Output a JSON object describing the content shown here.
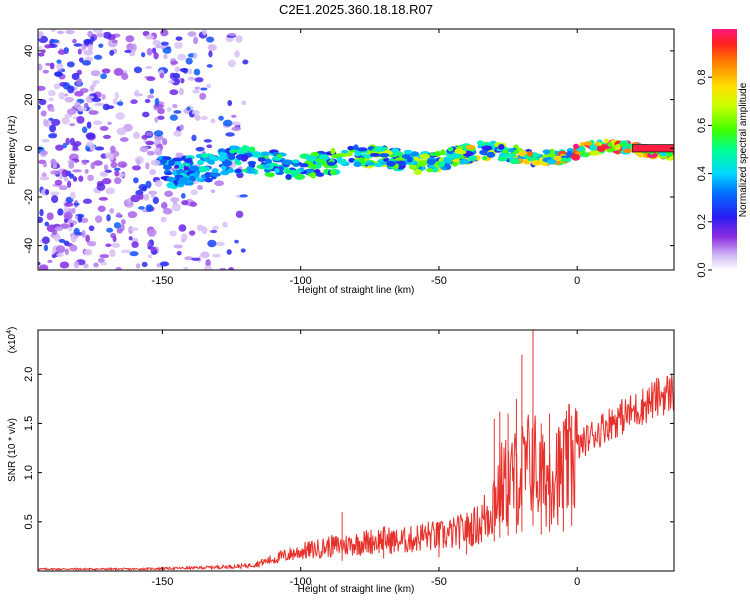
{
  "figure_title": "C2E1.2025.360.18.18.R07",
  "chart_data": [
    {
      "type": "heatmap",
      "title": "C2E1.2025.360.18.18.R07",
      "xlabel": "Height of straight line (km)",
      "ylabel": "Frequency (Hz)",
      "xlim": [
        -195,
        35
      ],
      "ylim": [
        -50,
        49
      ],
      "xticks": [
        -150,
        -100,
        -50,
        0
      ],
      "yticks": [
        -40,
        -20,
        0,
        20,
        40
      ],
      "colormap": "rainbow",
      "colorbar": {
        "label": "Normalized spectral amplitude",
        "range": [
          0,
          1
        ],
        "ticks": [
          0.0,
          0.2,
          0.4,
          0.6,
          0.8
        ]
      },
      "features": [
        {
          "name": "scattered noise",
          "x_range": [
            -195,
            -120
          ],
          "y_range": [
            -50,
            49
          ],
          "amplitude": [
            0.05,
            0.3
          ]
        },
        {
          "name": "signal band",
          "x_range": [
            -150,
            35
          ],
          "center_start": -8,
          "center_end": 0,
          "amplitude": [
            0.2,
            1.0
          ]
        }
      ]
    },
    {
      "type": "line",
      "xlabel": "Height of straight line (km)",
      "ylabel": "SNR (10 * v/v)",
      "ylabel_multiplier": "(x10",
      "ylabel_multiplier_exp": "4",
      "ylabel_multiplier_close": ")",
      "xlim": [
        -195,
        35
      ],
      "ylim": [
        0,
        2.45
      ],
      "xticks": [
        -150,
        -100,
        -50,
        0
      ],
      "yticks": [
        0.5,
        1.0,
        1.5,
        2.0
      ],
      "ytick_labels": [
        "0.5",
        "1.0",
        "1.5",
        "2.0"
      ],
      "series": [
        {
          "name": "SNR",
          "color": "#e8302a",
          "x": [
            -195,
            -180,
            -160,
            -140,
            -130,
            -120,
            -115,
            -110,
            -105,
            -100,
            -95,
            -90,
            -85,
            -80,
            -75,
            -70,
            -65,
            -60,
            -55,
            -50,
            -45,
            -40,
            -35,
            -32,
            -30,
            -28,
            -25,
            -22,
            -20,
            -18,
            -16,
            -14,
            -12,
            -10,
            -8,
            -6,
            -4,
            -2,
            0,
            2,
            5,
            8,
            10,
            15,
            20,
            25,
            30,
            35
          ],
          "values": [
            0.02,
            0.02,
            0.02,
            0.03,
            0.04,
            0.05,
            0.08,
            0.12,
            0.16,
            0.2,
            0.22,
            0.25,
            0.26,
            0.28,
            0.3,
            0.32,
            0.3,
            0.32,
            0.36,
            0.35,
            0.38,
            0.42,
            0.48,
            0.6,
            0.75,
            0.85,
            0.9,
            0.95,
            1.0,
            1.05,
            1.15,
            0.95,
            0.9,
            1.0,
            1.1,
            0.95,
            1.05,
            1.15,
            1.25,
            1.3,
            1.38,
            1.42,
            1.48,
            1.55,
            1.62,
            1.7,
            1.78,
            1.83
          ]
        }
      ],
      "spikes": [
        {
          "x": -16,
          "value": 2.45
        },
        {
          "x": -20,
          "value": 2.2
        },
        {
          "x": -22,
          "value": 1.75
        },
        {
          "x": -25,
          "value": 1.6
        },
        {
          "x": -28,
          "value": 1.62
        },
        {
          "x": -30,
          "value": 1.55
        },
        {
          "x": -13,
          "value": 1.5
        },
        {
          "x": -10,
          "value": 1.6
        },
        {
          "x": -5,
          "value": 1.52
        },
        {
          "x": -2,
          "value": 1.58
        },
        {
          "x": -85,
          "value": 0.6
        },
        {
          "x": -50,
          "value": 0.5
        },
        {
          "x": -40,
          "value": 0.55
        },
        {
          "x": -70,
          "value": 0.45
        }
      ]
    }
  ]
}
